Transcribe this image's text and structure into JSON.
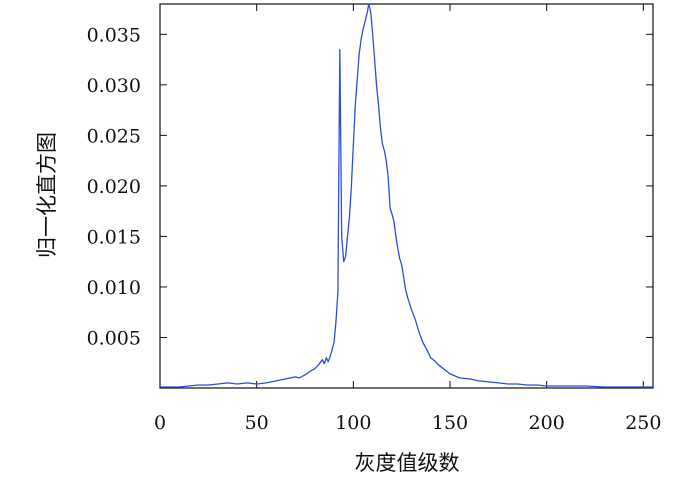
{
  "chart_data": {
    "type": "line",
    "title": "",
    "xlabel": "灰度值级数",
    "ylabel": "归一化直方图",
    "xlim": [
      0,
      255
    ],
    "ylim": [
      0,
      0.038
    ],
    "xticks": [
      {
        "value": 0,
        "label": "0"
      },
      {
        "value": 50,
        "label": "50"
      },
      {
        "value": 100,
        "label": "100"
      },
      {
        "value": 150,
        "label": "150"
      },
      {
        "value": 200,
        "label": "200"
      },
      {
        "value": 250,
        "label": "250"
      }
    ],
    "yticks": [
      {
        "value": 0.005,
        "label": "0.005"
      },
      {
        "value": 0.01,
        "label": "0.010"
      },
      {
        "value": 0.015,
        "label": "0.015"
      },
      {
        "value": 0.02,
        "label": "0.020"
      },
      {
        "value": 0.025,
        "label": "0.025"
      },
      {
        "value": 0.03,
        "label": "0.030"
      },
      {
        "value": 0.035,
        "label": "0.035"
      }
    ],
    "grid": false,
    "legend": "none",
    "colors": {
      "line": "#2b4fd6",
      "axis": "#111111"
    },
    "series": [
      {
        "x": [
          0,
          5,
          10,
          15,
          20,
          25,
          30,
          35,
          40,
          45,
          50,
          55,
          60,
          65,
          70,
          72,
          75,
          78,
          80,
          82,
          84,
          85,
          86,
          87,
          88,
          89,
          90,
          91,
          92,
          93,
          94,
          95,
          96,
          97,
          98,
          99,
          100,
          101,
          102,
          103,
          104,
          105,
          106,
          107,
          108,
          109,
          110,
          111,
          112,
          113,
          114,
          115,
          116,
          117,
          118,
          119,
          120,
          121,
          122,
          123,
          124,
          125,
          126,
          127,
          128,
          130,
          132,
          134,
          136,
          138,
          140,
          142,
          144,
          146,
          148,
          150,
          155,
          160,
          165,
          170,
          175,
          180,
          185,
          190,
          195,
          200,
          210,
          220,
          230,
          240,
          250,
          255
        ],
        "y": [
          0.0001,
          0.0001,
          0.0001,
          0.0002,
          0.0003,
          0.0003,
          0.0004,
          0.0005,
          0.0004,
          0.0005,
          0.0004,
          0.0005,
          0.0007,
          0.0009,
          0.0011,
          0.001,
          0.0013,
          0.0017,
          0.0019,
          0.0023,
          0.0028,
          0.0024,
          0.003,
          0.0026,
          0.0031,
          0.0038,
          0.0045,
          0.0065,
          0.0095,
          0.0335,
          0.015,
          0.0125,
          0.013,
          0.015,
          0.017,
          0.02,
          0.024,
          0.028,
          0.0305,
          0.033,
          0.0345,
          0.0355,
          0.0362,
          0.037,
          0.038,
          0.0372,
          0.035,
          0.0325,
          0.03,
          0.028,
          0.0258,
          0.0242,
          0.0235,
          0.0225,
          0.021,
          0.0178,
          0.0172,
          0.0165,
          0.015,
          0.0138,
          0.0128,
          0.0122,
          0.011,
          0.0098,
          0.009,
          0.0078,
          0.0068,
          0.0055,
          0.0045,
          0.0038,
          0.003,
          0.0027,
          0.0023,
          0.002,
          0.0017,
          0.0014,
          0.001,
          0.0009,
          0.0007,
          0.0006,
          0.0005,
          0.0004,
          0.0004,
          0.0003,
          0.0003,
          0.0002,
          0.0002,
          0.0002,
          0.0001,
          0.0001,
          0.0001,
          0.0001
        ]
      }
    ]
  }
}
